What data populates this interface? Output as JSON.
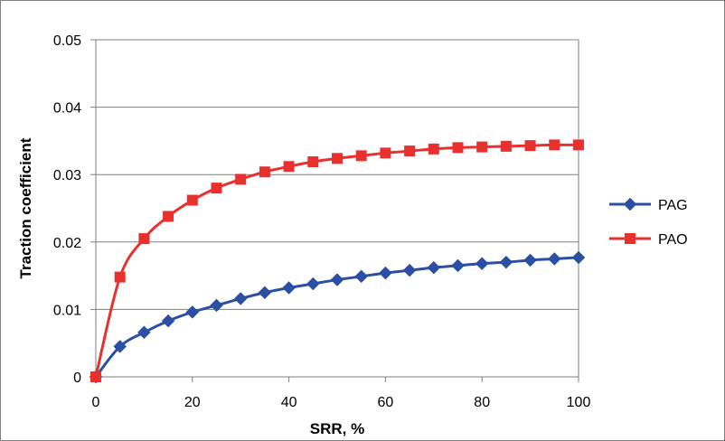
{
  "chart_data": {
    "type": "line",
    "xlabel": "SRR, %",
    "ylabel": "Traction coefficient",
    "xlim": [
      0,
      100
    ],
    "ylim": [
      0,
      0.05
    ],
    "xticks": [
      0,
      20,
      40,
      60,
      80,
      100
    ],
    "yticks": [
      0,
      0.01,
      0.02,
      0.03,
      0.04,
      0.05
    ],
    "ytick_labels": [
      "0",
      "0.01",
      "0.02",
      "0.03",
      "0.04",
      "0.05"
    ],
    "grid": "horizontal",
    "legend": "right",
    "x": [
      0,
      5,
      10,
      15,
      20,
      25,
      30,
      35,
      40,
      45,
      50,
      55,
      60,
      65,
      70,
      75,
      80,
      85,
      90,
      95,
      100
    ],
    "series": [
      {
        "name": "PAG",
        "color": "#2b4fa2",
        "marker": "diamond",
        "values": [
          0,
          0.0045,
          0.0066,
          0.0083,
          0.0096,
          0.0106,
          0.0116,
          0.0125,
          0.0132,
          0.0138,
          0.0144,
          0.0149,
          0.0154,
          0.0158,
          0.0162,
          0.0165,
          0.0168,
          0.017,
          0.0173,
          0.0175,
          0.0177
        ]
      },
      {
        "name": "PAO",
        "color": "#e8312f",
        "marker": "square",
        "values": [
          0,
          0.0148,
          0.0205,
          0.0238,
          0.0262,
          0.028,
          0.0293,
          0.0304,
          0.0312,
          0.0319,
          0.0324,
          0.0328,
          0.0332,
          0.0335,
          0.0338,
          0.034,
          0.0341,
          0.0342,
          0.0343,
          0.0344,
          0.0344
        ]
      }
    ]
  }
}
